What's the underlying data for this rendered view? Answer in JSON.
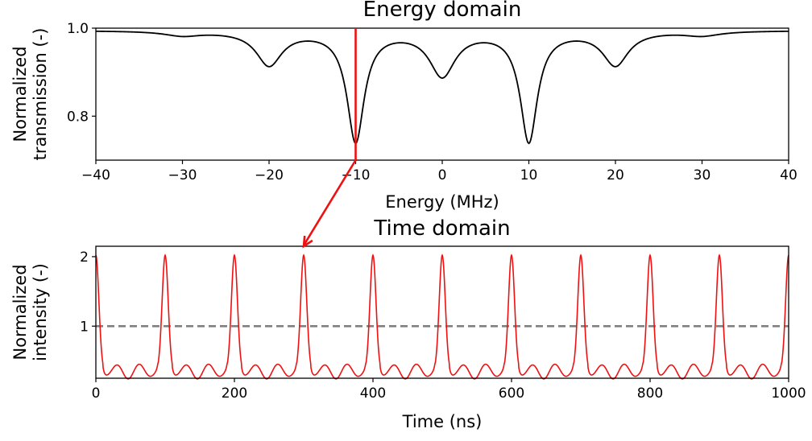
{
  "chart_data": [
    {
      "type": "line",
      "title": "Energy domain",
      "xlabel": "Energy (MHz)",
      "ylabel_lines": [
        "Normalized",
        "transmission (-)"
      ],
      "xlim": [
        -40,
        40
      ],
      "ylim": [
        0.7,
        1.0
      ],
      "xticks": [
        -40,
        -30,
        -20,
        -10,
        0,
        10,
        20,
        30,
        40
      ],
      "xtick_labels": [
        "−40",
        "−30",
        "−20",
        "−10",
        "0",
        "10",
        "20",
        "30",
        "40"
      ],
      "yticks": [
        0.8,
        1.0
      ],
      "ytick_labels": [
        "0.8",
        "1.0"
      ],
      "line_color": "#000000",
      "marker_line": {
        "x": -10,
        "color": "#ee1111"
      },
      "dips": [
        {
          "x": -30,
          "min": 0.985
        },
        {
          "x": -20,
          "min": 0.918
        },
        {
          "x": -10,
          "min": 0.745
        },
        {
          "x": 0,
          "min": 0.895
        },
        {
          "x": 10,
          "min": 0.745
        },
        {
          "x": 20,
          "min": 0.918
        },
        {
          "x": 30,
          "min": 0.985
        }
      ],
      "series": [
        {
          "x": [
            -40,
            -36,
            -33,
            -30,
            -27,
            -24,
            -22,
            -20,
            -18,
            -16,
            -14,
            -12.5,
            -11,
            -10,
            -9,
            -7.5,
            -6,
            -4,
            -2,
            0,
            2,
            4,
            6,
            7.5,
            9,
            10,
            11,
            12.5,
            14,
            16,
            18,
            20,
            22,
            24,
            27,
            30,
            33,
            36,
            40
          ],
          "y": [
            0.994,
            0.993,
            0.99,
            0.985,
            0.988,
            0.975,
            0.95,
            0.918,
            0.95,
            0.962,
            0.94,
            0.88,
            0.79,
            0.745,
            0.79,
            0.88,
            0.94,
            0.958,
            0.935,
            0.895,
            0.935,
            0.958,
            0.94,
            0.88,
            0.79,
            0.745,
            0.79,
            0.88,
            0.94,
            0.962,
            0.95,
            0.918,
            0.95,
            0.975,
            0.988,
            0.985,
            0.99,
            0.993,
            0.994
          ]
        }
      ]
    },
    {
      "type": "line",
      "title": "Time domain",
      "xlabel": "Time (ns)",
      "ylabel_lines": [
        "Normalized",
        "intensity (-)"
      ],
      "xlim": [
        0,
        1000
      ],
      "ylim": [
        0.25,
        2.15
      ],
      "xticks": [
        0,
        200,
        400,
        600,
        800,
        1000
      ],
      "xtick_labels": [
        "0",
        "200",
        "400",
        "600",
        "800",
        "1000"
      ],
      "yticks": [
        1,
        2
      ],
      "ytick_labels": [
        "1",
        "2"
      ],
      "period_ns": 100,
      "peak_value": 2.02,
      "baseline_value": 0.35,
      "series": [
        {
          "color": "#ee1111",
          "style": "solid",
          "pattern": "periodic pulses, period 100 ns, peak ≈2.02, troughs ≈0.32–0.55"
        },
        {
          "color": "#808080",
          "style": "dashed",
          "y_constant": 1.0
        }
      ]
    }
  ]
}
